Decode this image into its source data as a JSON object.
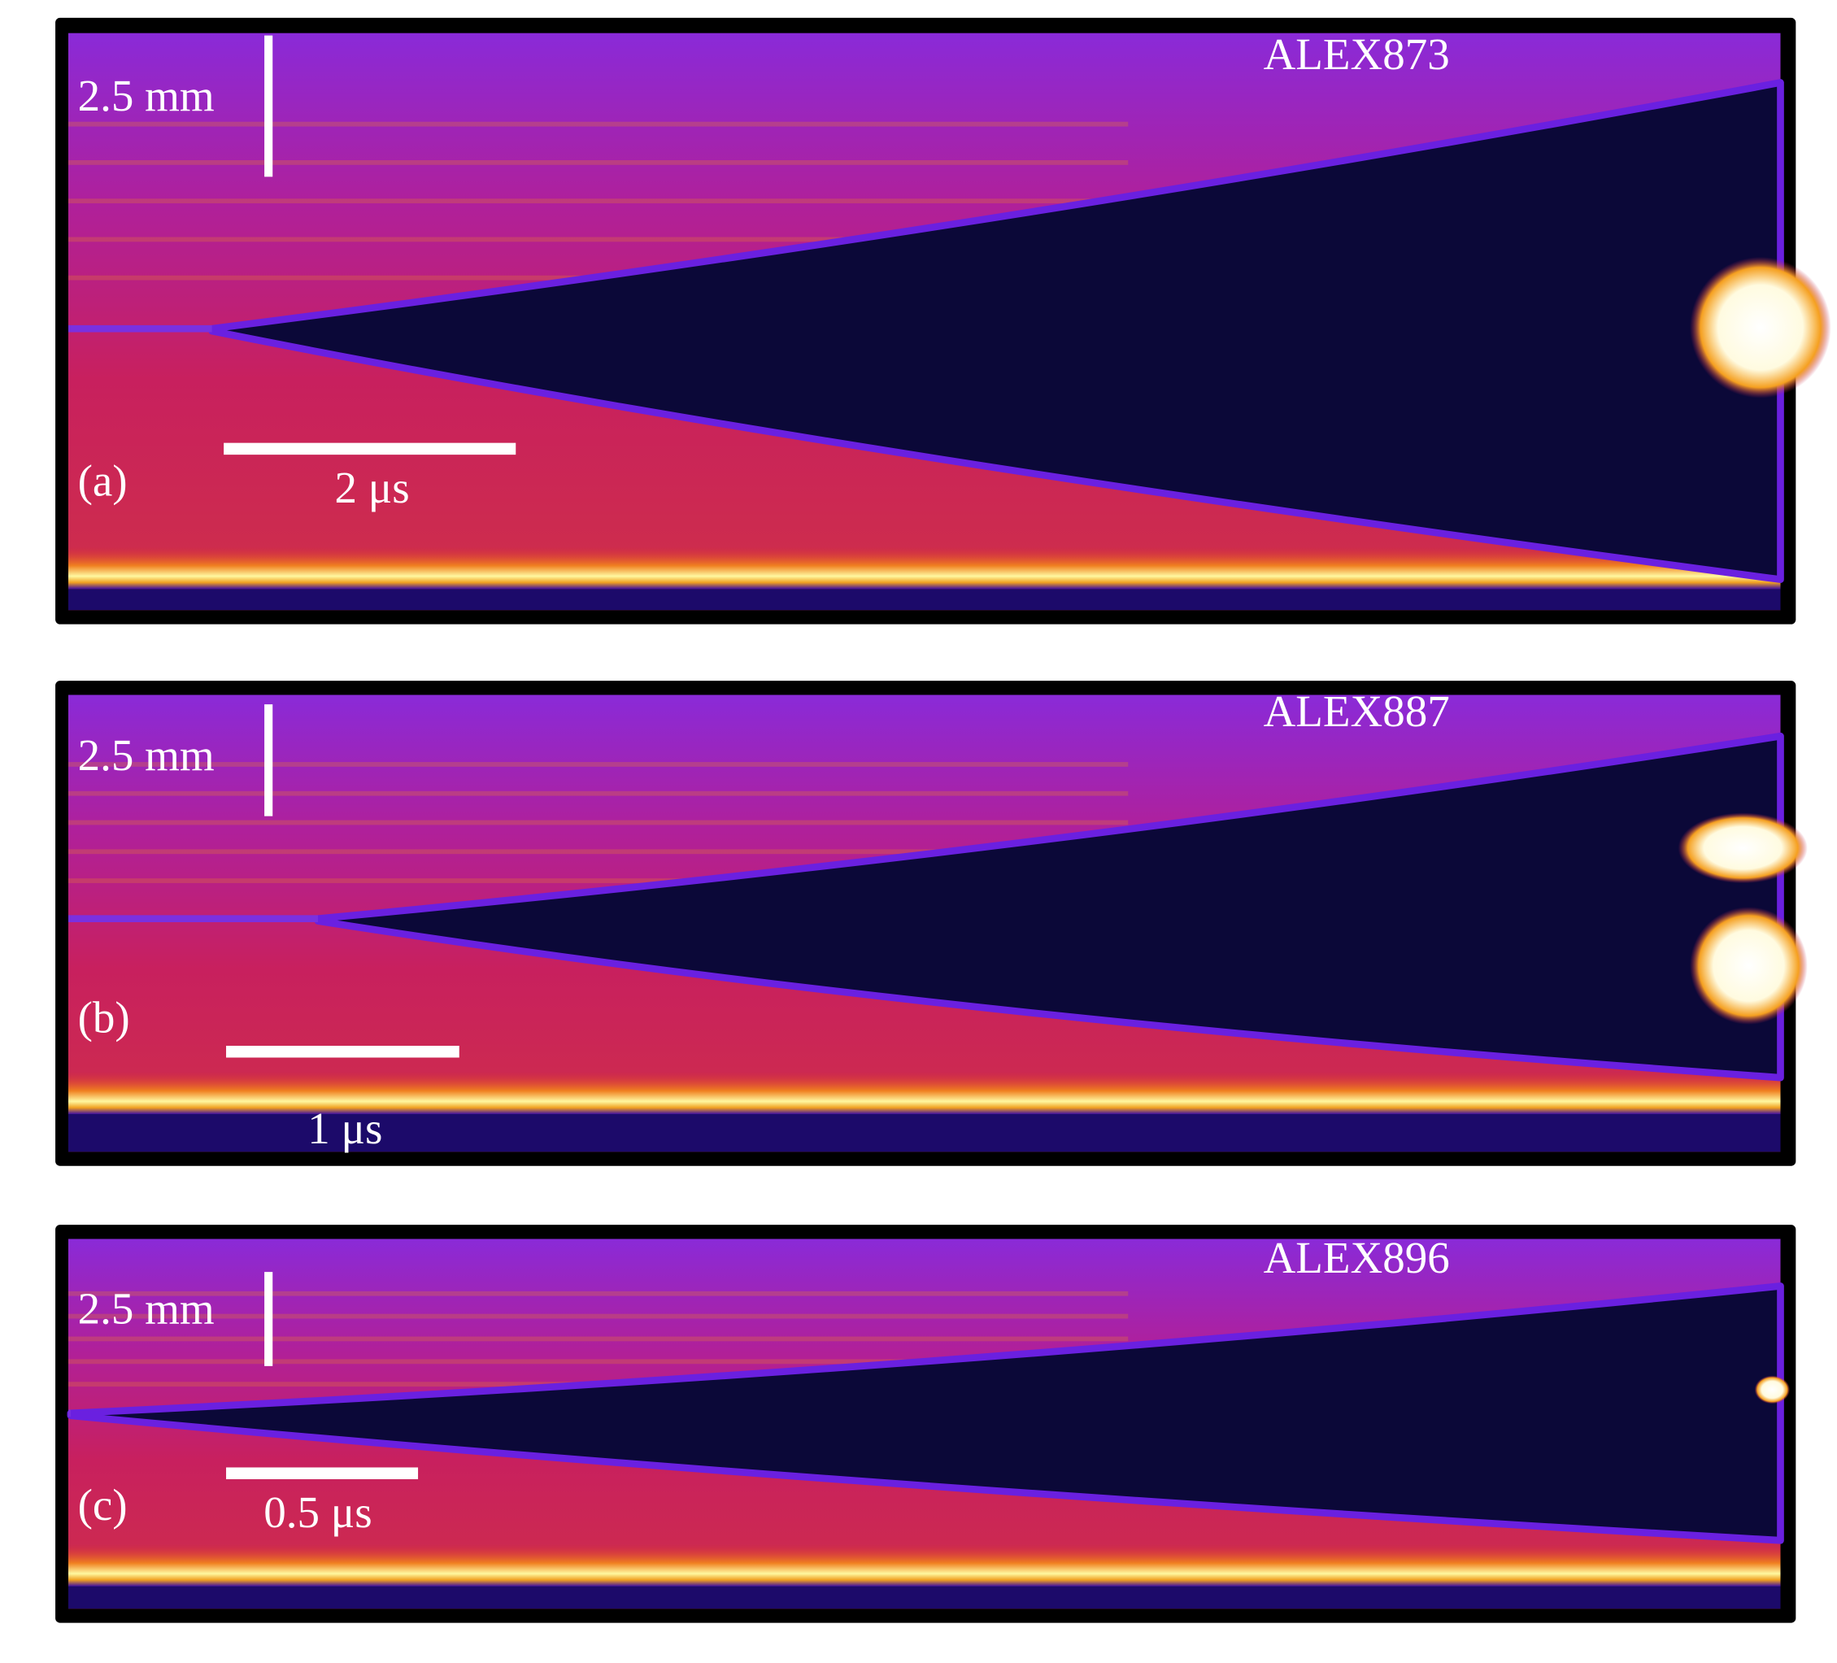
{
  "panels": [
    {
      "label": "(a)",
      "shot": "ALEX873",
      "length_scale": "2.5 mm",
      "time_scale": "2 μs"
    },
    {
      "label": "(b)",
      "shot": "ALEX887",
      "length_scale": "2.5 mm",
      "time_scale": "1 μs"
    },
    {
      "label": "(c)",
      "shot": "ALEX896",
      "length_scale": "2.5 mm",
      "time_scale": "0.5 μs"
    }
  ]
}
